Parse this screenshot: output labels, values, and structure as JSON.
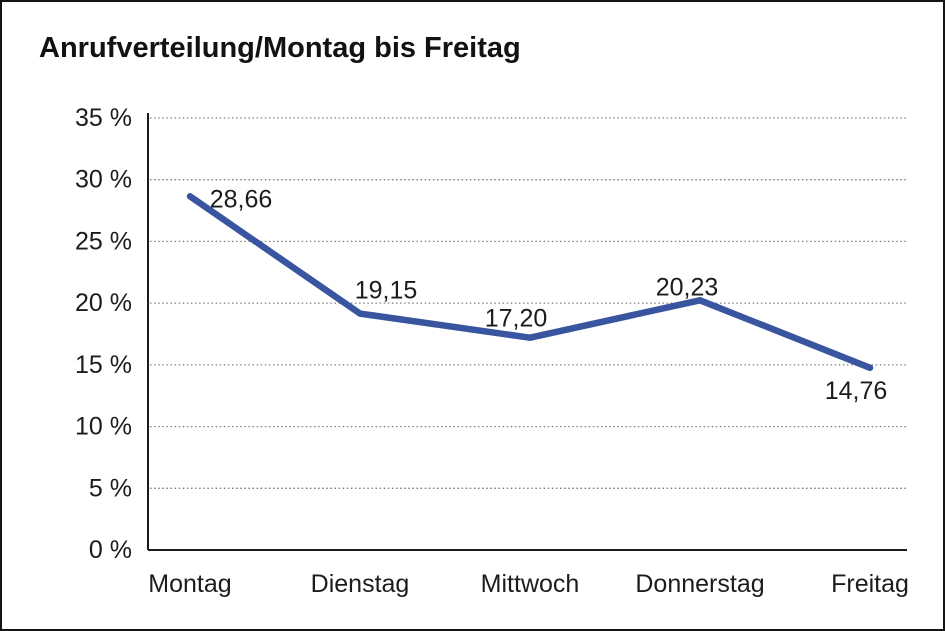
{
  "title": "Anrufverteilung/Montag bis Freitag",
  "chart_data": {
    "type": "line",
    "title": "Anrufverteilung/Montag bis Freitag",
    "categories": [
      "Montag",
      "Dienstag",
      "Mittwoch",
      "Donnerstag",
      "Freitag"
    ],
    "values": [
      28.66,
      19.15,
      17.2,
      20.23,
      14.76
    ],
    "value_labels": [
      "28,66",
      "19,15",
      "17,20",
      "20,23",
      "14,76"
    ],
    "xlabel": "",
    "ylabel": "",
    "ylim": [
      0,
      35
    ],
    "ytick_step": 5,
    "ytick_labels": [
      "0 %",
      "5 %",
      "10 %",
      "15 %",
      "20 %",
      "25 %",
      "30 %",
      "35 %"
    ],
    "grid": "horizontal-dotted",
    "legend": "none",
    "marker": "none"
  },
  "colors": {
    "line": "#3A55A0",
    "axis": "#1a1a1a",
    "grid": "#7d7d7d",
    "text": "#1c1c1c",
    "frame_border": "#141414",
    "background": "#ffffff"
  }
}
